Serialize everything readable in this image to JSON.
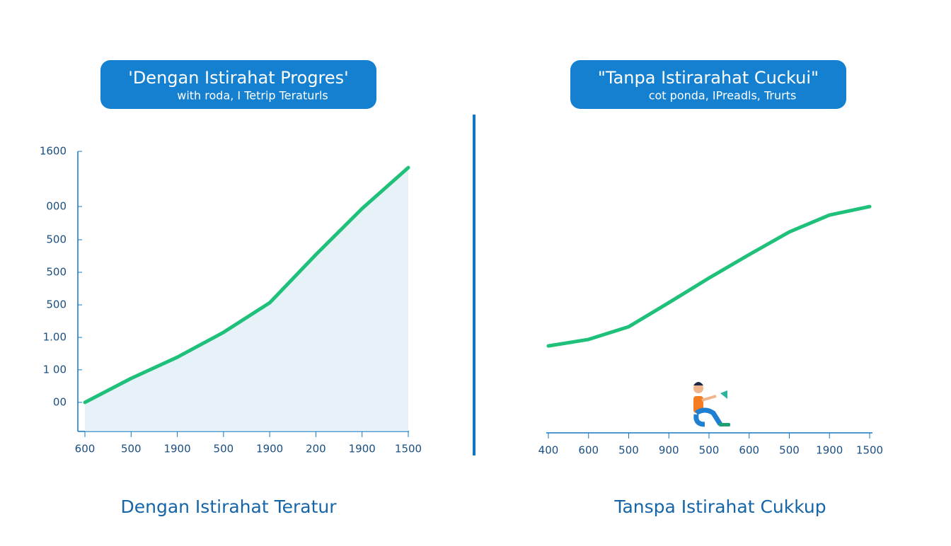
{
  "chart_data": [
    {
      "type": "line",
      "title": "'Dengan Istirahat Progres'",
      "subtitle": "with roda, I Tetrip Teraturls",
      "x_label": "Dengan Istirahat Teratur",
      "categories": [
        "600",
        "500",
        "1900",
        "500",
        "1900",
        "200",
        "1900",
        "1500"
      ],
      "series": [
        {
          "color": "#1ec07a",
          "values": [
            166,
            303,
            424,
            566,
            735,
            1010,
            1273,
            1507
          ]
        }
      ],
      "ylim": [
        0,
        1600
      ],
      "yticks": [
        1600,
        {
          "value": 1285,
          "label": "000"
        },
        {
          "value": 1095,
          "label": "500"
        },
        {
          "value": 909,
          "label": "500"
        },
        {
          "value": 723,
          "label": "500"
        },
        {
          "value": 537,
          "label": "1.00"
        },
        {
          "value": 352,
          "label": "1 00"
        },
        {
          "value": 166,
          "label": "00"
        }
      ],
      "area": true
    },
    {
      "type": "line",
      "title": "\"Tanpa Istirarahat Cuckui\"",
      "subtitle": "cot ponda, IPreadls, Trurts",
      "x_label": "Tanspa Istirahat Cukkup",
      "categories": [
        "400",
        "600",
        "500",
        "900",
        "500",
        "600",
        "500",
        "1900",
        "1500"
      ],
      "series": [
        {
          "color": "#1ec07a",
          "values": [
            494,
            531,
            603,
            740,
            880,
            1013,
            1142,
            1238,
            1286
          ]
        }
      ],
      "ylim": [
        0,
        1600
      ],
      "area": false
    }
  ]
}
